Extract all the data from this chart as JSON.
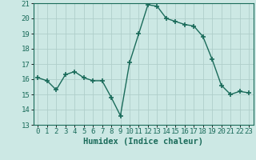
{
  "x": [
    0,
    1,
    2,
    3,
    4,
    5,
    6,
    7,
    8,
    9,
    10,
    11,
    12,
    13,
    14,
    15,
    16,
    17,
    18,
    19,
    20,
    21,
    22,
    23
  ],
  "y": [
    16.1,
    15.9,
    15.3,
    16.3,
    16.5,
    16.1,
    15.9,
    15.9,
    14.8,
    13.6,
    17.1,
    19.0,
    20.9,
    20.8,
    20.0,
    19.8,
    19.6,
    19.5,
    18.8,
    17.3,
    15.6,
    15.0,
    15.2,
    15.1
  ],
  "line_color": "#1a6b5a",
  "marker_color": "#1a6b5a",
  "bg_color": "#cce8e4",
  "grid_color": "#b0ceca",
  "xlabel": "Humidex (Indice chaleur)",
  "xlim": [
    -0.5,
    23.5
  ],
  "ylim": [
    13,
    21
  ],
  "yticks": [
    13,
    14,
    15,
    16,
    17,
    18,
    19,
    20,
    21
  ],
  "xticks": [
    0,
    1,
    2,
    3,
    4,
    5,
    6,
    7,
    8,
    9,
    10,
    11,
    12,
    13,
    14,
    15,
    16,
    17,
    18,
    19,
    20,
    21,
    22,
    23
  ],
  "xlabel_fontsize": 7.5,
  "tick_fontsize": 6.5
}
